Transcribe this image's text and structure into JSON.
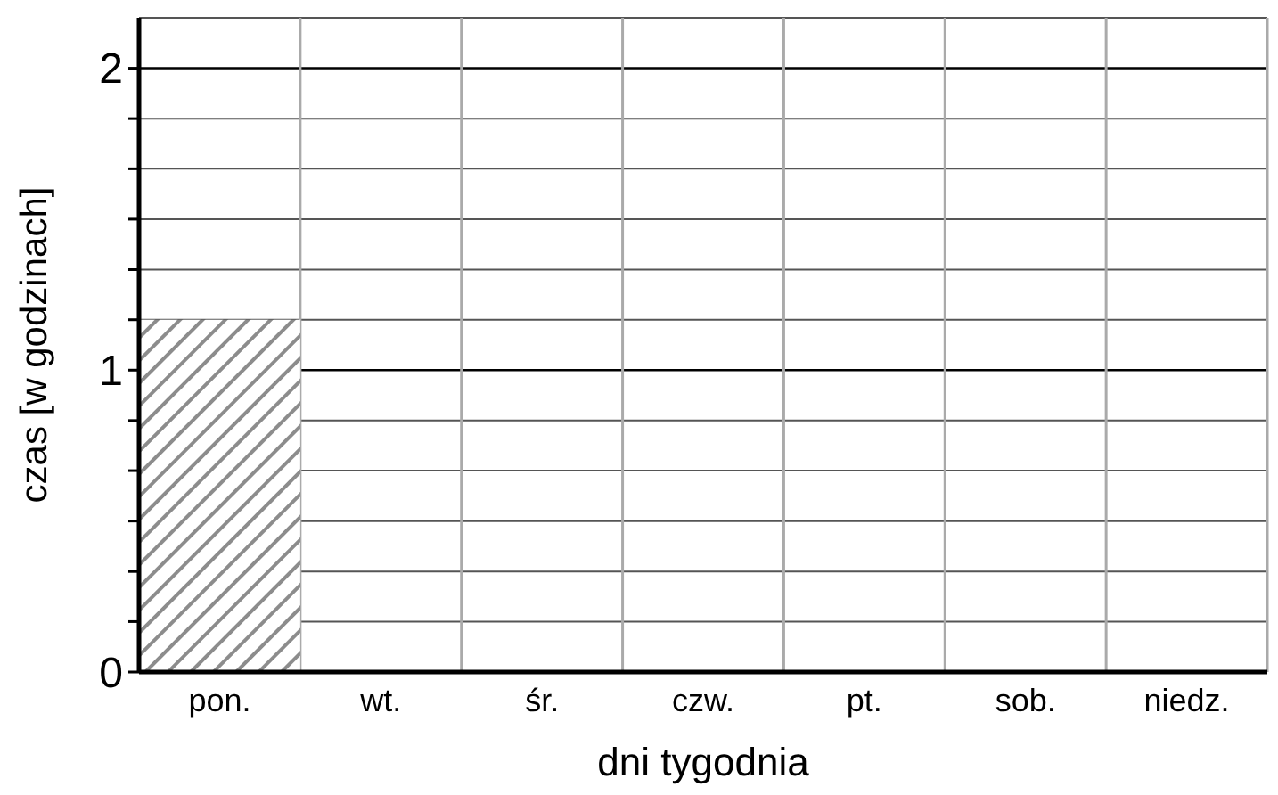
{
  "chart_data": {
    "type": "bar",
    "xlabel": "dni tygodnia",
    "ylabel": "czas [w godzinach]",
    "categories": [
      "pon.",
      "wt.",
      "śr.",
      "czw.",
      "pt.",
      "sob.",
      "niedz."
    ],
    "values": [
      1.167,
      null,
      null,
      null,
      null,
      null,
      null
    ],
    "color": "#8c8c8c",
    "ylim": [
      0,
      2.167
    ],
    "yticks": [
      0,
      {
        "value": 0.167,
        "label": null
      },
      {
        "value": 0.333,
        "label": null
      },
      {
        "value": 0.5,
        "label": null
      },
      {
        "value": 0.667,
        "label": null
      },
      {
        "value": 0.833,
        "label": null
      },
      1,
      {
        "value": 1.167,
        "label": null
      },
      {
        "value": 1.333,
        "label": null
      },
      {
        "value": 1.5,
        "label": null
      },
      {
        "value": 1.667,
        "label": null
      },
      {
        "value": 1.833,
        "label": null
      },
      2
    ],
    "grid": true
  }
}
